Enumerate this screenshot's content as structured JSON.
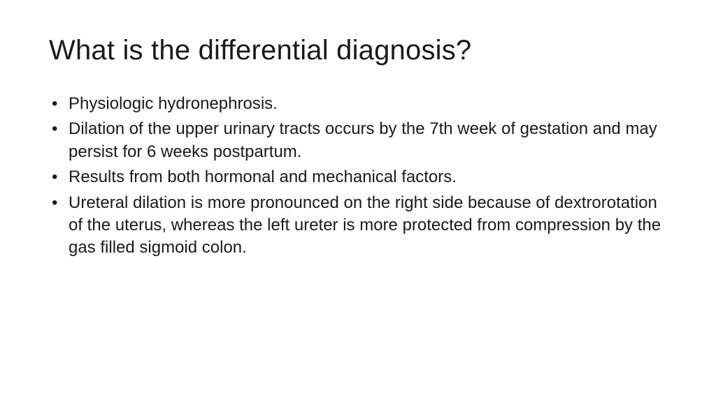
{
  "slide": {
    "background_color": "#ffffff",
    "title": {
      "text": "What is the differential diagnosis?",
      "font_size_pt": 40,
      "font_weight": 300,
      "color": "#1a1a1a"
    },
    "bullets": {
      "font_size_pt": 24,
      "color": "#1a1a1a",
      "line_height": 1.35,
      "marker": "•",
      "items": [
        "Physiologic hydronephrosis.",
        "Dilation of the upper urinary tracts occurs by the 7th week of gestation and may persist for 6 weeks postpartum.",
        "Results from both hormonal and mechanical factors.",
        "Ureteral dilation is more pronounced on the right side because of dextrorotation of the uterus, whereas the left ureter is more protected from compression by the gas filled sigmoid colon."
      ]
    }
  }
}
